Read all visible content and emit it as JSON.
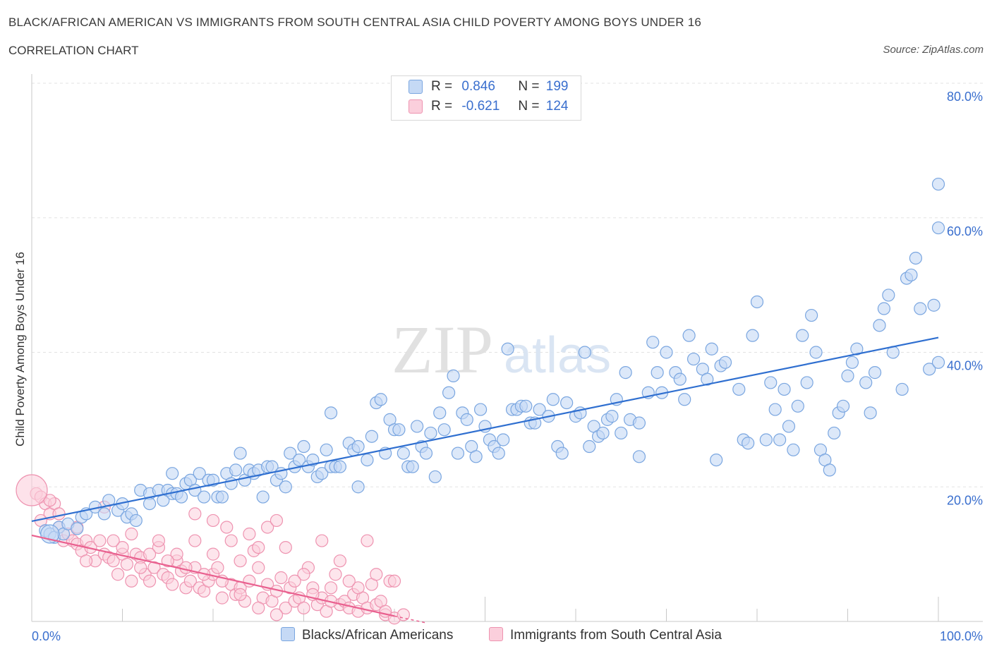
{
  "title": "BLACK/AFRICAN AMERICAN VS IMMIGRANTS FROM SOUTH CENTRAL ASIA CHILD POVERTY AMONG BOYS UNDER 16",
  "subtitle": "CORRELATION CHART",
  "source": "Source: ZipAtlas.com",
  "watermark": {
    "zip": "ZIP",
    "atlas": "atlas"
  },
  "legend": {
    "r_label": "R =",
    "n_label": "N =",
    "rows": [
      {
        "r": "0.846",
        "n": "199",
        "fill": "#c5d9f5",
        "stroke": "#7aa6e0"
      },
      {
        "r": "-0.621",
        "n": "124",
        "fill": "#fbcfdc",
        "stroke": "#ee93b0"
      }
    ]
  },
  "colors": {
    "blue_fill": "#c5d9f5",
    "blue_stroke": "#7aa6e0",
    "blue_line": "#2f6fd0",
    "pink_fill": "#fbcfdc",
    "pink_stroke": "#ee93b0",
    "pink_line": "#e9608f",
    "axis_label": "#3a6fce",
    "grid": "#e3e3e3"
  },
  "chart_data": {
    "type": "scatter",
    "title": "BLACK/AFRICAN AMERICAN VS IMMIGRANTS FROM SOUTH CENTRAL ASIA CHILD POVERTY AMONG BOYS UNDER 16",
    "xlabel": "",
    "ylabel": "Child Poverty Among Boys Under 16",
    "xlim": [
      0,
      100
    ],
    "ylim": [
      0,
      80
    ],
    "x_tick_labels": [
      "0.0%",
      "100.0%"
    ],
    "y_ticks": [
      20,
      40,
      60,
      80
    ],
    "y_tick_labels": [
      "20.0%",
      "40.0%",
      "60.0%",
      "80.0%"
    ],
    "grid": true,
    "series": [
      {
        "name": "Blacks/African Americans",
        "trend": {
          "x0": 0,
          "y0": 14.9,
          "x1": 100,
          "y1": 42.2
        },
        "points": [
          [
            1.5,
            13.5
          ],
          [
            2,
            13
          ],
          [
            2.5,
            12.5
          ],
          [
            3,
            14
          ],
          [
            3.5,
            13
          ],
          [
            4,
            14.5
          ],
          [
            5,
            13.8
          ],
          [
            5.5,
            15.5
          ],
          [
            6,
            16
          ],
          [
            7,
            17
          ],
          [
            8,
            16
          ],
          [
            8.5,
            18
          ],
          [
            9.5,
            16.5
          ],
          [
            10,
            17.5
          ],
          [
            10.5,
            15.5
          ],
          [
            11,
            16
          ],
          [
            11.5,
            15
          ],
          [
            12,
            19.5
          ],
          [
            13,
            19
          ],
          [
            13,
            17.5
          ],
          [
            14,
            19.5
          ],
          [
            14.5,
            18
          ],
          [
            15,
            19.5
          ],
          [
            15.5,
            22
          ],
          [
            15.5,
            19
          ],
          [
            16,
            19
          ],
          [
            16.5,
            18.5
          ],
          [
            17,
            20.5
          ],
          [
            17.5,
            21
          ],
          [
            18,
            19.5
          ],
          [
            18.5,
            22
          ],
          [
            19,
            18.5
          ],
          [
            19.5,
            21
          ],
          [
            20,
            21
          ],
          [
            20.5,
            18.5
          ],
          [
            21,
            18.5
          ],
          [
            21.5,
            22
          ],
          [
            22,
            20.5
          ],
          [
            22.5,
            22.5
          ],
          [
            23,
            25
          ],
          [
            23.5,
            21
          ],
          [
            24,
            22.5
          ],
          [
            24.5,
            22
          ],
          [
            25,
            22.5
          ],
          [
            25.5,
            18.5
          ],
          [
            26,
            23
          ],
          [
            26.5,
            23
          ],
          [
            27,
            21
          ],
          [
            27.5,
            22
          ],
          [
            28,
            20
          ],
          [
            28.5,
            25
          ],
          [
            29,
            23
          ],
          [
            29.5,
            24
          ],
          [
            30,
            26
          ],
          [
            30.5,
            23
          ],
          [
            31,
            24
          ],
          [
            31.5,
            21.5
          ],
          [
            32,
            22
          ],
          [
            32.5,
            25.5
          ],
          [
            33,
            23
          ],
          [
            33.5,
            23
          ],
          [
            33,
            31
          ],
          [
            34,
            23
          ],
          [
            35,
            26.5
          ],
          [
            35.5,
            25.5
          ],
          [
            36,
            26
          ],
          [
            36,
            20
          ],
          [
            37,
            24
          ],
          [
            37.5,
            27.5
          ],
          [
            38,
            32.5
          ],
          [
            38.5,
            33
          ],
          [
            39,
            25
          ],
          [
            39.5,
            30
          ],
          [
            40,
            28.5
          ],
          [
            40.5,
            28.5
          ],
          [
            41,
            25
          ],
          [
            41.5,
            23
          ],
          [
            42,
            23
          ],
          [
            42.5,
            29
          ],
          [
            43,
            26
          ],
          [
            43.5,
            25
          ],
          [
            44,
            28
          ],
          [
            44.5,
            21.5
          ],
          [
            45,
            31
          ],
          [
            45.5,
            28.5
          ],
          [
            46,
            34
          ],
          [
            46.5,
            36.5
          ],
          [
            47,
            25
          ],
          [
            47.5,
            31
          ],
          [
            48,
            30
          ],
          [
            48.5,
            26
          ],
          [
            49,
            24.5
          ],
          [
            49.5,
            31.5
          ],
          [
            50,
            29
          ],
          [
            50.5,
            27
          ],
          [
            51,
            26
          ],
          [
            51.5,
            25
          ],
          [
            52,
            27
          ],
          [
            52.5,
            40.5
          ],
          [
            53,
            31.5
          ],
          [
            53.5,
            31.5
          ],
          [
            54,
            32
          ],
          [
            54.5,
            32
          ],
          [
            55,
            29.5
          ],
          [
            55.5,
            29.5
          ],
          [
            56,
            31.5
          ],
          [
            57,
            30.5
          ],
          [
            57.5,
            33
          ],
          [
            58,
            26
          ],
          [
            58.5,
            25
          ],
          [
            59,
            32.5
          ],
          [
            60,
            30.5
          ],
          [
            60.5,
            31
          ],
          [
            61,
            40
          ],
          [
            61.5,
            26
          ],
          [
            62,
            29
          ],
          [
            62.5,
            27.5
          ],
          [
            63,
            28
          ],
          [
            63.5,
            30
          ],
          [
            64,
            30.5
          ],
          [
            64.5,
            33
          ],
          [
            65,
            28
          ],
          [
            65.5,
            37
          ],
          [
            66,
            30
          ],
          [
            67,
            24.5
          ],
          [
            67,
            29.5
          ],
          [
            68,
            34
          ],
          [
            68.5,
            41.5
          ],
          [
            69,
            37
          ],
          [
            69.5,
            34
          ],
          [
            70,
            40
          ],
          [
            71,
            37
          ],
          [
            71.5,
            36
          ],
          [
            72,
            33
          ],
          [
            72.5,
            42.5
          ],
          [
            73,
            39
          ],
          [
            74,
            37.5
          ],
          [
            74.5,
            36
          ],
          [
            75,
            40.5
          ],
          [
            75.5,
            24
          ],
          [
            76,
            38
          ],
          [
            76.5,
            38.5
          ],
          [
            78,
            34.5
          ],
          [
            78.5,
            27
          ],
          [
            79,
            26.5
          ],
          [
            79.5,
            42.5
          ],
          [
            80,
            47.5
          ],
          [
            81,
            27
          ],
          [
            81.5,
            35.5
          ],
          [
            82,
            31.5
          ],
          [
            82.5,
            27
          ],
          [
            83,
            34.5
          ],
          [
            83.5,
            29
          ],
          [
            84,
            25.5
          ],
          [
            84.5,
            32
          ],
          [
            85,
            42.5
          ],
          [
            85.5,
            35.5
          ],
          [
            86,
            45.5
          ],
          [
            86.5,
            40
          ],
          [
            87,
            25.5
          ],
          [
            87.5,
            24
          ],
          [
            88,
            22.5
          ],
          [
            88.5,
            28
          ],
          [
            89,
            31
          ],
          [
            89.5,
            32
          ],
          [
            90,
            36.5
          ],
          [
            90.5,
            38.5
          ],
          [
            91,
            40.5
          ],
          [
            92,
            35.5
          ],
          [
            92.5,
            31
          ],
          [
            93,
            37
          ],
          [
            93.5,
            44
          ],
          [
            94,
            46.5
          ],
          [
            94.5,
            48.5
          ],
          [
            95,
            40
          ],
          [
            96,
            34.5
          ],
          [
            96.5,
            51
          ],
          [
            97,
            51.5
          ],
          [
            97.5,
            54
          ],
          [
            98,
            46.5
          ],
          [
            99,
            37.5
          ],
          [
            99.5,
            47
          ],
          [
            100,
            38.5
          ],
          [
            100,
            65
          ],
          [
            100,
            58.5
          ]
        ]
      },
      {
        "name": "Immigrants from South Central Asia",
        "trend": {
          "x0": 0,
          "y0": 12.8,
          "x1": 40,
          "y1": 0.8,
          "dash_to_x": 43.5,
          "dash_to_y": -0.25
        },
        "points": [
          [
            0.5,
            19
          ],
          [
            1,
            18.5
          ],
          [
            1.5,
            17.5
          ],
          [
            2,
            16
          ],
          [
            2.5,
            17.5
          ],
          [
            3,
            14
          ],
          [
            3.5,
            12
          ],
          [
            4,
            13
          ],
          [
            4.5,
            12
          ],
          [
            5,
            11.5
          ],
          [
            5.5,
            10.5
          ],
          [
            6,
            12
          ],
          [
            6.5,
            11
          ],
          [
            7,
            9
          ],
          [
            7.5,
            12
          ],
          [
            8,
            10
          ],
          [
            8.5,
            9.5
          ],
          [
            9,
            9
          ],
          [
            9.5,
            7
          ],
          [
            10,
            10
          ],
          [
            10.5,
            8.5
          ],
          [
            11,
            6
          ],
          [
            11.5,
            10
          ],
          [
            12,
            9.5
          ],
          [
            12.5,
            7
          ],
          [
            13,
            6
          ],
          [
            13.5,
            8
          ],
          [
            14,
            11
          ],
          [
            14.5,
            7
          ],
          [
            15,
            6.5
          ],
          [
            15.5,
            5.5
          ],
          [
            16,
            9
          ],
          [
            16.5,
            7.5
          ],
          [
            17,
            5
          ],
          [
            17.5,
            6
          ],
          [
            18,
            8
          ],
          [
            18.5,
            5
          ],
          [
            19,
            4.5
          ],
          [
            19.5,
            6
          ],
          [
            20,
            7
          ],
          [
            20.5,
            8
          ],
          [
            21,
            3.5
          ],
          [
            21.5,
            14
          ],
          [
            22,
            5.5
          ],
          [
            22.5,
            4
          ],
          [
            23,
            5
          ],
          [
            23.5,
            3
          ],
          [
            24,
            6
          ],
          [
            24.5,
            10.5
          ],
          [
            25,
            8
          ],
          [
            25.5,
            3.5
          ],
          [
            26,
            5.5
          ],
          [
            26.5,
            3
          ],
          [
            27,
            4.5
          ],
          [
            27.5,
            6.5
          ],
          [
            28,
            2
          ],
          [
            28.5,
            5
          ],
          [
            29,
            3
          ],
          [
            29.5,
            3.5
          ],
          [
            30,
            2
          ],
          [
            30.5,
            8
          ],
          [
            31,
            5
          ],
          [
            31.5,
            2.5
          ],
          [
            32,
            3.5
          ],
          [
            32.5,
            1.5
          ],
          [
            33,
            5
          ],
          [
            33.5,
            7
          ],
          [
            34,
            2.5
          ],
          [
            34.5,
            3
          ],
          [
            35,
            2
          ],
          [
            35.5,
            4
          ],
          [
            36,
            1.5
          ],
          [
            36.5,
            3.5
          ],
          [
            37,
            2
          ],
          [
            37.5,
            5.5
          ],
          [
            38,
            2.5
          ],
          [
            38.5,
            3
          ],
          [
            39,
            1
          ],
          [
            39.5,
            6
          ],
          [
            40,
            0.5
          ],
          [
            18,
            16
          ],
          [
            20,
            15
          ],
          [
            22,
            12
          ],
          [
            24,
            13
          ],
          [
            25,
            11
          ],
          [
            26,
            14
          ],
          [
            27,
            15
          ],
          [
            20,
            10
          ],
          [
            23,
            9
          ],
          [
            8,
            17
          ],
          [
            3,
            16
          ],
          [
            5,
            14
          ],
          [
            10,
            11
          ],
          [
            12,
            8
          ],
          [
            14,
            12
          ],
          [
            16,
            10
          ],
          [
            18,
            12
          ],
          [
            28,
            11
          ],
          [
            30,
            7
          ],
          [
            32,
            12
          ],
          [
            34,
            9
          ],
          [
            36,
            5
          ],
          [
            2,
            18
          ],
          [
            1,
            15
          ],
          [
            6,
            9
          ],
          [
            9,
            12
          ],
          [
            11,
            13
          ],
          [
            13,
            10
          ],
          [
            15,
            9
          ],
          [
            17,
            8
          ],
          [
            19,
            7
          ],
          [
            21,
            6
          ],
          [
            23,
            4
          ],
          [
            25,
            2
          ],
          [
            27,
            1
          ],
          [
            29,
            6
          ],
          [
            31,
            4
          ],
          [
            33,
            3
          ],
          [
            35,
            6
          ],
          [
            37,
            12
          ],
          [
            38,
            7
          ],
          [
            39,
            1.5
          ],
          [
            40,
            6
          ],
          [
            41,
            1
          ]
        ]
      }
    ]
  },
  "bottom_legend": [
    "Blacks/African Americans",
    "Immigrants from South Central Asia"
  ]
}
